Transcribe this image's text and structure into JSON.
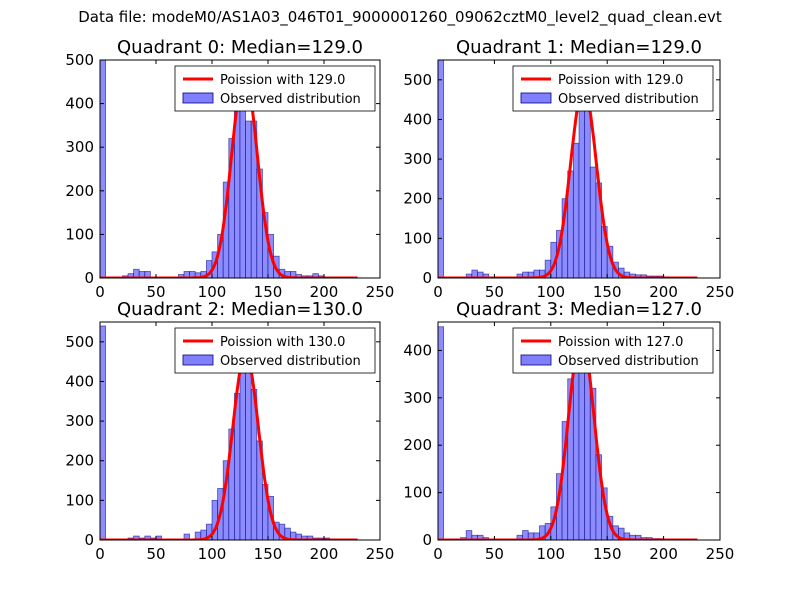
{
  "suptitle": "Data file: modeM0/AS1A03_046T01_9000001260_09062cztM0_level2_quad_clean.evt",
  "colors": {
    "poisson": "#ff0000",
    "hist_fill": "#8080ff",
    "hist_edge": "#000080"
  },
  "chart_data": [
    {
      "type": "bar",
      "title": "Quadrant 0: Median=129.0",
      "median": 129.0,
      "xlim": [
        0,
        250
      ],
      "ylim": [
        0,
        500
      ],
      "xticks": [
        0,
        50,
        100,
        150,
        200,
        250
      ],
      "yticks": [
        0,
        100,
        200,
        300,
        400,
        500
      ],
      "bin_width": 5,
      "legend": [
        "Poission with 129.0",
        "Observed distribution"
      ],
      "hist_x": [
        0,
        20,
        25,
        30,
        35,
        40,
        70,
        75,
        80,
        85,
        90,
        95,
        100,
        105,
        110,
        115,
        120,
        125,
        130,
        135,
        140,
        145,
        150,
        155,
        160,
        165,
        170,
        175,
        180,
        185,
        190,
        195,
        200
      ],
      "hist_y": [
        500,
        5,
        10,
        20,
        15,
        15,
        8,
        15,
        15,
        12,
        15,
        40,
        60,
        100,
        220,
        320,
        430,
        440,
        360,
        360,
        250,
        150,
        100,
        50,
        20,
        15,
        15,
        8,
        5,
        5,
        10,
        5,
        2
      ],
      "poisson_peak": 470
    },
    {
      "type": "bar",
      "title": "Quadrant 1: Median=129.0",
      "median": 129.0,
      "xlim": [
        0,
        250
      ],
      "ylim": [
        0,
        550
      ],
      "xticks": [
        0,
        50,
        100,
        150,
        200,
        250
      ],
      "yticks": [
        0,
        100,
        200,
        300,
        400,
        500
      ],
      "bin_width": 5,
      "legend": [
        "Poission with 129.0",
        "Observed distribution"
      ],
      "hist_x": [
        0,
        25,
        30,
        35,
        40,
        70,
        75,
        80,
        85,
        90,
        95,
        100,
        105,
        110,
        115,
        120,
        125,
        130,
        135,
        140,
        145,
        150,
        155,
        160,
        165,
        170,
        175,
        180,
        185,
        190,
        195,
        200
      ],
      "hist_y": [
        550,
        10,
        20,
        15,
        10,
        10,
        15,
        15,
        20,
        20,
        45,
        90,
        120,
        200,
        270,
        340,
        500,
        520,
        280,
        240,
        130,
        80,
        40,
        25,
        15,
        10,
        8,
        8,
        5,
        5,
        5,
        3
      ],
      "poisson_peak": 480
    },
    {
      "type": "bar",
      "title": "Quadrant 2: Median=130.0",
      "median": 130.0,
      "xlim": [
        0,
        250
      ],
      "ylim": [
        0,
        550
      ],
      "xticks": [
        0,
        50,
        100,
        150,
        200,
        250
      ],
      "yticks": [
        0,
        100,
        200,
        300,
        400,
        500
      ],
      "bin_width": 5,
      "legend": [
        "Poission with 130.0",
        "Observed distribution"
      ],
      "hist_x": [
        0,
        25,
        30,
        35,
        40,
        45,
        50,
        75,
        85,
        90,
        95,
        100,
        105,
        110,
        115,
        120,
        125,
        130,
        135,
        140,
        145,
        150,
        155,
        160,
        165,
        170,
        175,
        180,
        185,
        190,
        195,
        200
      ],
      "hist_y": [
        540,
        5,
        10,
        5,
        10,
        5,
        10,
        15,
        20,
        25,
        40,
        100,
        130,
        200,
        280,
        370,
        500,
        510,
        380,
        250,
        140,
        110,
        45,
        40,
        30,
        20,
        15,
        10,
        10,
        5,
        5,
        5
      ],
      "poisson_peak": 470
    },
    {
      "type": "bar",
      "title": "Quadrant 3: Median=127.0",
      "median": 127.0,
      "xlim": [
        0,
        250
      ],
      "ylim": [
        0,
        460
      ],
      "xticks": [
        0,
        50,
        100,
        150,
        200,
        250
      ],
      "yticks": [
        0,
        100,
        200,
        300,
        400
      ],
      "bin_width": 5,
      "legend": [
        "Poission with 127.0",
        "Observed distribution"
      ],
      "hist_x": [
        0,
        20,
        25,
        30,
        35,
        40,
        70,
        75,
        80,
        85,
        90,
        95,
        100,
        105,
        110,
        115,
        120,
        125,
        130,
        135,
        140,
        145,
        150,
        155,
        160,
        165,
        170,
        175,
        180,
        185,
        190,
        195
      ],
      "hist_y": [
        450,
        5,
        20,
        10,
        10,
        5,
        10,
        20,
        15,
        15,
        30,
        35,
        70,
        140,
        250,
        340,
        430,
        430,
        370,
        320,
        180,
        110,
        50,
        30,
        25,
        15,
        10,
        10,
        5,
        5,
        3,
        3
      ],
      "poisson_peak": 430
    }
  ]
}
